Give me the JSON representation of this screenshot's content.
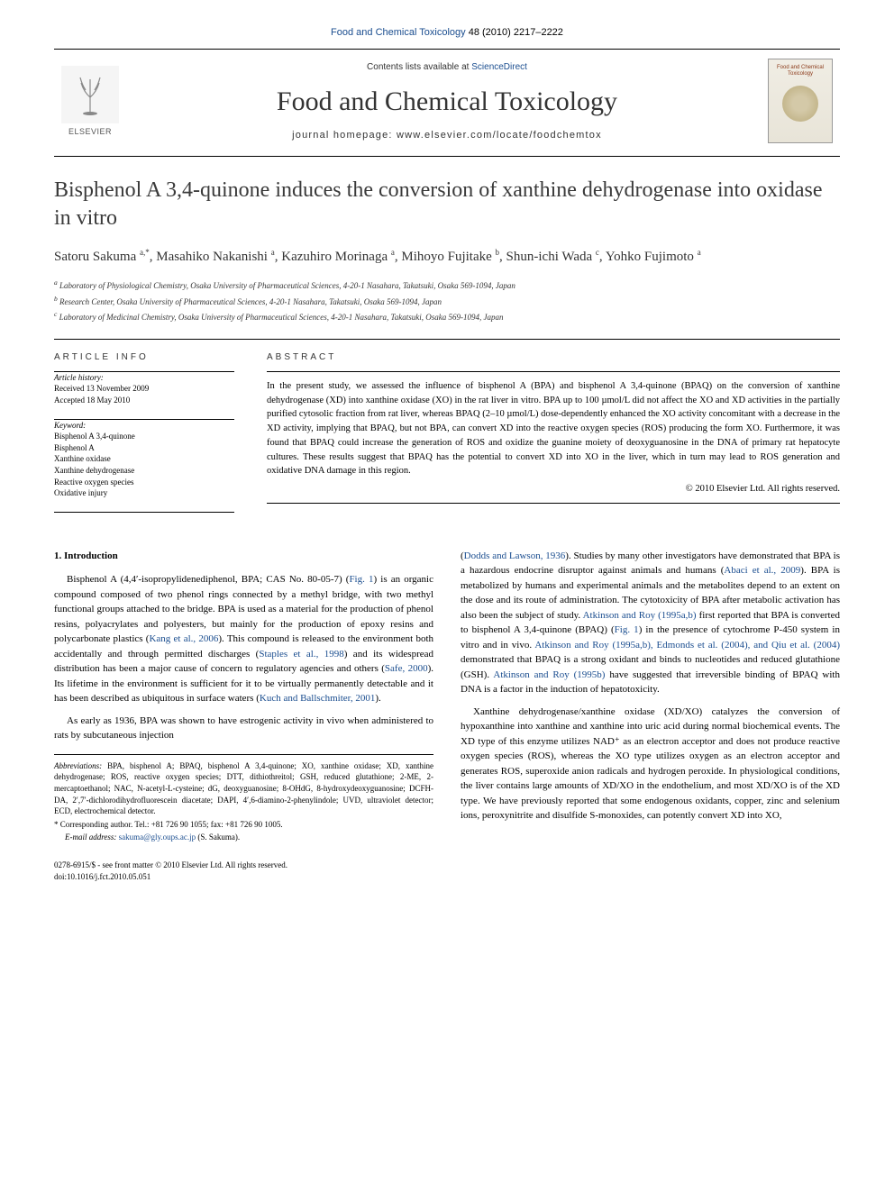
{
  "top_link": {
    "journal": "Food and Chemical Toxicology",
    "citation": "48 (2010) 2217–2222"
  },
  "masthead": {
    "contents_prefix": "Contents lists available at",
    "contents_link": "ScienceDirect",
    "journal_title": "Food and Chemical Toxicology",
    "homepage_prefix": "journal homepage:",
    "homepage_url": "www.elsevier.com/locate/foodchemtox",
    "publisher_label": "ELSEVIER",
    "cover_title": "Food and Chemical Toxicology"
  },
  "article": {
    "title": "Bisphenol A 3,4-quinone induces the conversion of xanthine dehydrogenase into oxidase in vitro",
    "authors_html": "Satoru Sakuma <sup>a,*</sup>, Masahiko Nakanishi <sup>a</sup>, Kazuhiro Morinaga <sup>a</sup>, Mihoyo Fujitake <sup>b</sup>, Shun-ichi Wada <sup>c</sup>, Yohko Fujimoto <sup>a</sup>",
    "affiliations": [
      "a Laboratory of Physiological Chemistry, Osaka University of Pharmaceutical Sciences, 4-20-1 Nasahara, Takatsuki, Osaka 569-1094, Japan",
      "b Research Center, Osaka University of Pharmaceutical Sciences, 4-20-1 Nasahara, Takatsuki, Osaka 569-1094, Japan",
      "c Laboratory of Medicinal Chemistry, Osaka University of Pharmaceutical Sciences, 4-20-1 Nasahara, Takatsuki, Osaka 569-1094, Japan"
    ]
  },
  "info": {
    "header": "ARTICLE INFO",
    "history_label": "Article history:",
    "received": "Received 13 November 2009",
    "accepted": "Accepted 18 May 2010",
    "keyword_label": "Keyword:",
    "keywords": [
      "Bisphenol A 3,4-quinone",
      "Bisphenol A",
      "Xanthine oxidase",
      "Xanthine dehydrogenase",
      "Reactive oxygen species",
      "Oxidative injury"
    ]
  },
  "abstract": {
    "header": "ABSTRACT",
    "text": "In the present study, we assessed the influence of bisphenol A (BPA) and bisphenol A 3,4-quinone (BPAQ) on the conversion of xanthine dehydrogenase (XD) into xanthine oxidase (XO) in the rat liver in vitro. BPA up to 100 µmol/L did not affect the XO and XD activities in the partially purified cytosolic fraction from rat liver, whereas BPAQ (2–10 µmol/L) dose-dependently enhanced the XO activity concomitant with a decrease in the XD activity, implying that BPAQ, but not BPA, can convert XD into the reactive oxygen species (ROS) producing the form XO. Furthermore, it was found that BPAQ could increase the generation of ROS and oxidize the guanine moiety of deoxyguanosine in the DNA of primary rat hepatocyte cultures. These results suggest that BPAQ has the potential to convert XD into XO in the liver, which in turn may lead to ROS generation and oxidative DNA damage in this region.",
    "copyright": "© 2010 Elsevier Ltd. All rights reserved."
  },
  "body": {
    "intro_heading": "1. Introduction",
    "left_paragraphs": [
      "Bisphenol A (4,4′-isopropylidenediphenol, BPA; CAS No. 80-05-7) (<span class=\"citation\">Fig. 1</span>) is an organic compound composed of two phenol rings connected by a methyl bridge, with two methyl functional groups attached to the bridge. BPA is used as a material for the production of phenol resins, polyacrylates and polyesters, but mainly for the production of epoxy resins and polycarbonate plastics (<span class=\"citation\">Kang et al., 2006</span>). This compound is released to the environment both accidentally and through permitted discharges (<span class=\"citation\">Staples et al., 1998</span>) and its widespread distribution has been a major cause of concern to regulatory agencies and others (<span class=\"citation\">Safe, 2000</span>). Its lifetime in the environment is sufficient for it to be virtually permanently detectable and it has been described as ubiquitous in surface waters (<span class=\"citation\">Kuch and Ballschmiter, 2001</span>).",
      "As early as 1936, BPA was shown to have estrogenic activity in vivo when administered to rats by subcutaneous injection"
    ],
    "right_paragraphs": [
      "(<span class=\"citation\">Dodds and Lawson, 1936</span>). Studies by many other investigators have demonstrated that BPA is a hazardous endocrine disruptor against animals and humans (<span class=\"citation\">Abaci et al., 2009</span>). BPA is metabolized by humans and experimental animals and the metabolites depend to an extent on the dose and its route of administration. The cytotoxicity of BPA after metabolic activation has also been the subject of study. <span class=\"citation\">Atkinson and Roy (1995a,b)</span> first reported that BPA is converted to bisphenol A 3,4-quinone (BPAQ) (<span class=\"citation\">Fig. 1</span>) in the presence of cytochrome P-450 system in vitro and in vivo. <span class=\"citation\">Atkinson and Roy (1995a,b), Edmonds et al. (2004), and Qiu et al. (2004)</span> demonstrated that BPAQ is a strong oxidant and binds to nucleotides and reduced glutathione (GSH). <span class=\"citation\">Atkinson and Roy (1995b)</span> have suggested that irreversible binding of BPAQ with DNA is a factor in the induction of hepatotoxicity.",
      "Xanthine dehydrogenase/xanthine oxidase (XD/XO) catalyzes the conversion of hypoxanthine into xanthine and xanthine into uric acid during normal biochemical events. The XD type of this enzyme utilizes NAD⁺ as an electron acceptor and does not produce reactive oxygen species (ROS), whereas the XO type utilizes oxygen as an electron acceptor and generates ROS, superoxide anion radicals and hydrogen peroxide. In physiological conditions, the liver contains large amounts of XD/XO in the endothelium, and most XD/XO is of the XD type. We have previously reported that some endogenous oxidants, copper, zinc and selenium ions, peroxynitrite and disulfide S-monoxides, can potently convert XD into XO,"
    ]
  },
  "footnotes": {
    "abbrev_label": "Abbreviations:",
    "abbrev_text": "BPA, bisphenol A; BPAQ, bisphenol A 3,4-quinone; XO, xanthine oxidase; XD, xanthine dehydrogenase; ROS, reactive oxygen species; DTT, dithiothreitol; GSH, reduced glutathione; 2-ME, 2-mercaptoethanol; NAC, N-acetyl-L-cysteine; dG, deoxyguanosine; 8-OHdG, 8-hydroxydeoxyguanosine; DCFH-DA, 2′,7′-dichlorodihydrofluorescein diacetate; DAPI, 4′,6-diamino-2-phenylindole; UVD, ultraviolet detector; ECD, electrochemical detector.",
    "corr_label": "* Corresponding author.",
    "corr_text": "Tel.: +81 726 90 1055; fax: +81 726 90 1005.",
    "email_label": "E-mail address:",
    "email": "sakuma@gly.oups.ac.jp",
    "email_suffix": "(S. Sakuma)."
  },
  "bottom": {
    "front_matter": "0278-6915/$ - see front matter © 2010 Elsevier Ltd. All rights reserved.",
    "doi": "doi:10.1016/j.fct.2010.05.051"
  },
  "colors": {
    "link": "#1a4d8f",
    "text": "#000000",
    "heading_gray": "#3a3a3a"
  }
}
